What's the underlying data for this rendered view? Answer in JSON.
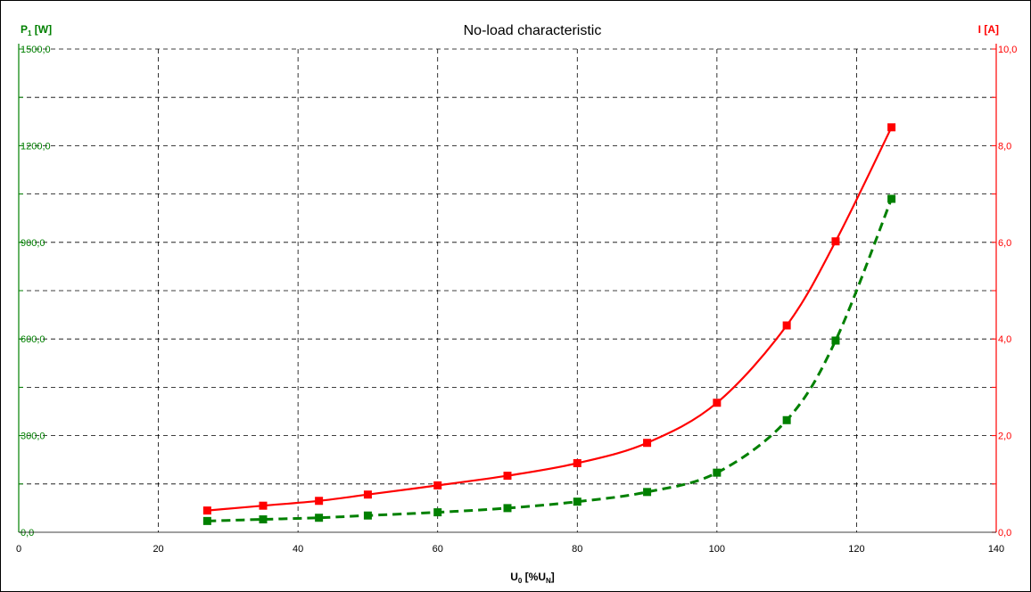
{
  "chart_data": {
    "type": "line",
    "title": "No-load characteristic",
    "xlabel": {
      "main": "U",
      "sub": "0",
      "open": " [%U",
      "sub2": "N",
      "close": "]"
    },
    "ylabel_left": {
      "main": "P",
      "sub": "1",
      "rest": " [W]"
    },
    "ylabel_right": "I [A]",
    "xlim": [
      0,
      140
    ],
    "ylim_left": [
      0,
      1500
    ],
    "ylim_right": [
      0,
      10
    ],
    "x_ticks": [
      "0",
      "20",
      "40",
      "60",
      "80",
      "100",
      "120",
      "140"
    ],
    "y_left_ticks": [
      "0,0",
      "300,0",
      "600,0",
      "900,0",
      "1200,0",
      "1500,0"
    ],
    "y_right_ticks": [
      "0,0",
      "2,0",
      "4,0",
      "6,0",
      "8,0",
      "10,0"
    ],
    "grid": true,
    "colors": {
      "left_axis": "#008000",
      "right_axis": "#ff0000",
      "grid": "#000000"
    },
    "series": [
      {
        "axis": "right",
        "color": "#ff0000",
        "dash": false,
        "x": [
          27,
          35,
          43,
          50,
          60,
          70,
          80,
          90,
          100,
          110,
          117,
          125
        ],
        "y": [
          0.45,
          0.55,
          0.65,
          0.78,
          0.97,
          1.17,
          1.43,
          1.85,
          2.68,
          4.28,
          6.02,
          8.38
        ]
      },
      {
        "axis": "left",
        "color": "#008000",
        "dash": true,
        "x": [
          27,
          35,
          43,
          50,
          60,
          70,
          80,
          90,
          100,
          110,
          117,
          125
        ],
        "y": [
          35,
          40,
          45,
          52,
          62,
          75,
          95,
          125,
          185,
          348,
          595,
          1035
        ]
      }
    ]
  }
}
